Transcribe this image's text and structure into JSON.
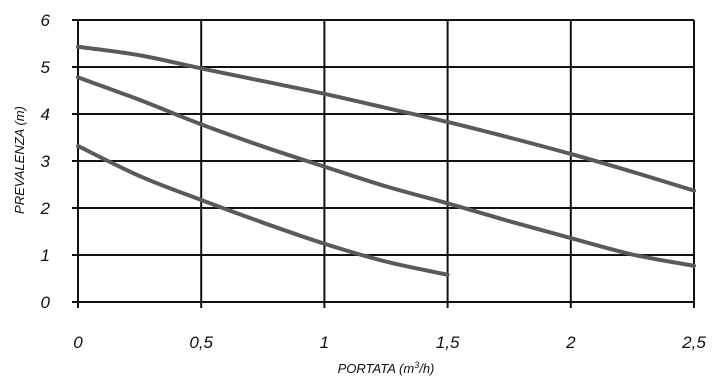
{
  "chart_data": {
    "type": "line",
    "title": "",
    "xlabel": "PORTATA (m",
    "xlabel_sup": "3",
    "xlabel_end": "/h)",
    "ylabel": "PREVALENZA (m)",
    "xlim": [
      0,
      2.5
    ],
    "ylim": [
      0,
      6
    ],
    "x_ticks": [
      0,
      0.5,
      1,
      1.5,
      2,
      2.5
    ],
    "x_tick_labels": [
      "0",
      "0,5",
      "1",
      "1,5",
      "2",
      "2,5"
    ],
    "y_ticks": [
      0,
      1,
      2,
      3,
      4,
      5,
      6
    ],
    "y_tick_labels": [
      "0",
      "1",
      "2",
      "3",
      "4",
      "5",
      "6"
    ],
    "grid": true,
    "line_color": "#5a5a5a",
    "series": [
      {
        "x": [
          0,
          0.25,
          0.5,
          0.75,
          1.0,
          1.25,
          1.5,
          1.75,
          2.0,
          2.25,
          2.5
        ],
        "values": [
          5.43,
          5.25,
          4.97,
          4.7,
          4.43,
          4.13,
          3.83,
          3.5,
          3.15,
          2.77,
          2.37
        ]
      },
      {
        "x": [
          0,
          0.25,
          0.5,
          0.75,
          1.0,
          1.25,
          1.5,
          1.75,
          2.0,
          2.25,
          2.5
        ],
        "values": [
          4.78,
          4.3,
          3.78,
          3.31,
          2.88,
          2.46,
          2.1,
          1.72,
          1.36,
          1.01,
          0.77
        ]
      },
      {
        "x": [
          0,
          0.25,
          0.5,
          0.75,
          1.0,
          1.25,
          1.5
        ],
        "values": [
          3.32,
          2.68,
          2.17,
          1.69,
          1.24,
          0.86,
          0.58
        ]
      }
    ]
  }
}
